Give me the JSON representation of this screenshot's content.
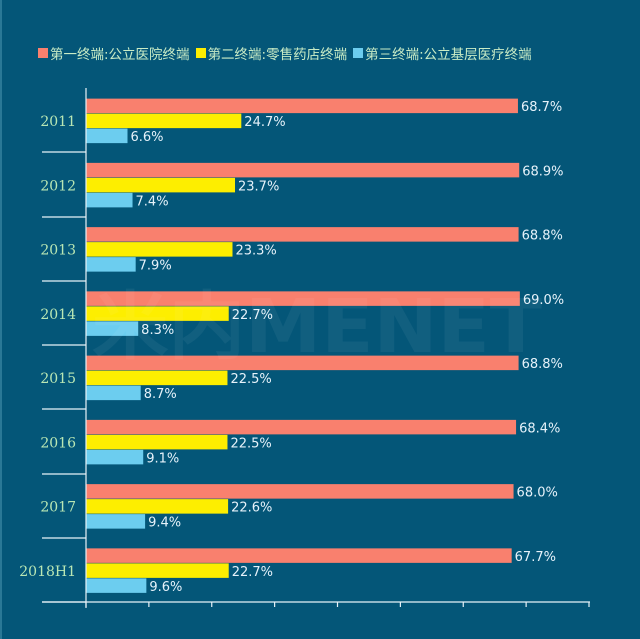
{
  "chart_data": {
    "type": "bar",
    "orientation": "horizontal",
    "title": "",
    "xlabel": "",
    "ylabel": "",
    "xlim": [
      0,
      80
    ],
    "x_tick_step": 10,
    "grid": false,
    "legend_position": "top",
    "categories": [
      "2011",
      "2012",
      "2013",
      "2014",
      "2015",
      "2016",
      "2017",
      "2018H1"
    ],
    "series": [
      {
        "name": "第一终端:公立医院终端",
        "color": "#f9806e",
        "values": [
          68.7,
          68.9,
          68.8,
          69.0,
          68.8,
          68.4,
          68.0,
          67.7
        ],
        "labels": [
          "68.7%",
          "68.9%",
          "68.8%",
          "69.0%",
          "68.8%",
          "68.4%",
          "68.0%",
          "67.7%"
        ]
      },
      {
        "name": "第二终端:零售药店终端",
        "color": "#fdee00",
        "values": [
          24.7,
          23.7,
          23.3,
          22.7,
          22.5,
          22.5,
          22.6,
          22.7
        ],
        "labels": [
          "24.7%",
          "23.7%",
          "23.3%",
          "22.7%",
          "22.5%",
          "22.5%",
          "22.6%",
          "22.7%"
        ]
      },
      {
        "name": "第三终端:公立基层医疗终端",
        "color": "#6ccdef",
        "values": [
          6.6,
          7.4,
          7.9,
          8.3,
          8.7,
          9.1,
          9.4,
          9.6
        ],
        "labels": [
          "6.6%",
          "7.4%",
          "7.9%",
          "8.3%",
          "8.7%",
          "9.1%",
          "9.4%",
          "9.6%"
        ]
      }
    ]
  },
  "colors": {
    "background": "#045678",
    "axis": "#e8f2f8",
    "category_text": "#b9e7b4",
    "value_text": "#e6f2fa"
  },
  "watermark": "米内MENET"
}
